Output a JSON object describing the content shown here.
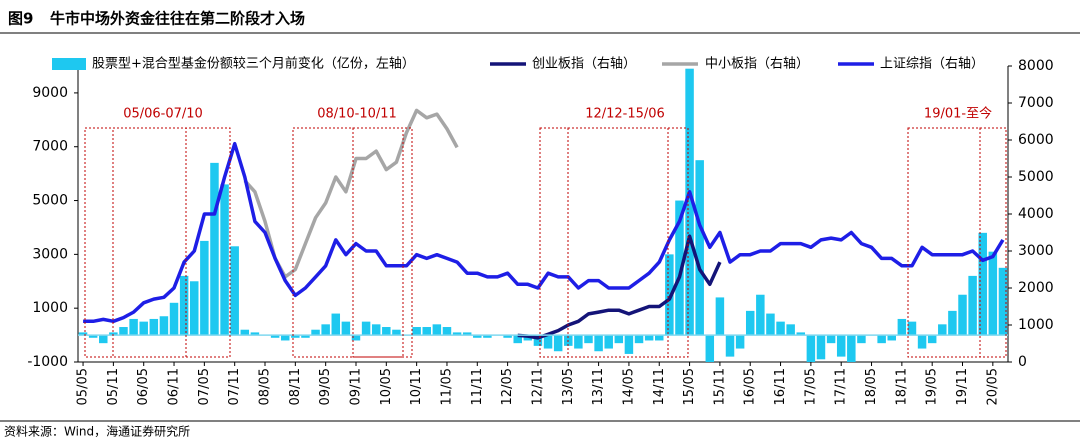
{
  "chart_data": {
    "type": "bar",
    "figure_label": "图9",
    "title": "牛市中场外资金往往在第二阶段才入场",
    "source": "资料来源：Wind，海通证券研究所",
    "categories": [
      "05/05",
      null,
      null,
      "05/11",
      null,
      null,
      "06/05",
      null,
      null,
      "06/11",
      null,
      null,
      "07/05",
      null,
      null,
      "07/11",
      null,
      null,
      "08/05",
      null,
      null,
      "08/11",
      null,
      null,
      "09/05",
      null,
      null,
      "09/11",
      null,
      null,
      "10/05",
      null,
      null,
      "10/11",
      null,
      null,
      "11/05",
      null,
      null,
      "11/11",
      null,
      null,
      "12/05",
      null,
      null,
      "12/11",
      null,
      null,
      "13/05",
      null,
      null,
      "13/11",
      null,
      null,
      "14/05",
      null,
      null,
      "14/11",
      null,
      null,
      "15/05",
      null,
      null,
      "15/11",
      null,
      null,
      "16/05",
      null,
      null,
      "16/11",
      null,
      null,
      "17/05",
      null,
      null,
      "17/11",
      null,
      null,
      "18/05",
      null,
      null,
      "18/11",
      null,
      null,
      "19/05",
      null,
      null,
      "19/11",
      null,
      null,
      "20/05",
      null
    ],
    "series": [
      {
        "name": "股票型+混合型基金份额较三个月前变化（亿份，左轴）",
        "type": "bar",
        "color": "#1ec8f0",
        "values": [
          100,
          -100,
          -300,
          100,
          300,
          600,
          500,
          600,
          700,
          1200,
          2200,
          2000,
          3500,
          6400,
          5600,
          3300,
          200,
          100,
          0,
          -100,
          -200,
          -100,
          -100,
          200,
          400,
          800,
          500,
          -200,
          500,
          400,
          300,
          200,
          0,
          300,
          300,
          400,
          300,
          100,
          100,
          -100,
          -100,
          0,
          -100,
          -300,
          -200,
          -400,
          -500,
          -600,
          -400,
          -500,
          -300,
          -600,
          -500,
          -300,
          -700,
          -300,
          -200,
          -200,
          3000,
          5000,
          9900,
          6500,
          -1000,
          1400,
          -800,
          -500,
          900,
          1500,
          800,
          500,
          400,
          100,
          -1000,
          -900,
          -300,
          -800,
          -1000,
          -300,
          0,
          -300,
          -200,
          600,
          500,
          -500,
          -300,
          400,
          900,
          1500,
          2200,
          3800,
          3100,
          2500
        ]
      },
      {
        "name": "创业板指（右轴）",
        "type": "line",
        "axis": "y2",
        "color": "#141478",
        "values": [
          null,
          null,
          null,
          null,
          null,
          null,
          null,
          null,
          null,
          null,
          null,
          null,
          null,
          null,
          null,
          null,
          null,
          null,
          null,
          null,
          null,
          null,
          null,
          null,
          null,
          null,
          null,
          null,
          null,
          null,
          null,
          null,
          null,
          null,
          null,
          null,
          null,
          null,
          null,
          null,
          null,
          null,
          null,
          720,
          700,
          650,
          750,
          850,
          1000,
          1100,
          1300,
          1350,
          1400,
          1400,
          1300,
          1400,
          1500,
          1500,
          1700,
          2300,
          3400,
          2500,
          2100,
          2700,
          null,
          null,
          null,
          null,
          null,
          null,
          null,
          null,
          null,
          null,
          null,
          null,
          null,
          null,
          null,
          null,
          null,
          null,
          null,
          null,
          null,
          null,
          null,
          null,
          null,
          null,
          null,
          null
        ]
      },
      {
        "name": "中小板指（右轴）",
        "type": "line",
        "axis": "y2",
        "color": "#a6a6a6",
        "values": [
          null,
          null,
          null,
          null,
          null,
          null,
          null,
          null,
          null,
          null,
          null,
          null,
          null,
          null,
          null,
          null,
          4900,
          4600,
          3800,
          2800,
          2300,
          2500,
          3200,
          3900,
          4300,
          5000,
          4600,
          5500,
          5500,
          5700,
          5200,
          5400,
          6200,
          6800,
          6600,
          6700,
          6300,
          5800,
          null,
          null,
          null,
          null,
          null,
          null,
          null,
          null,
          null,
          null,
          null,
          null,
          null,
          null,
          null,
          null,
          null,
          null,
          null,
          null,
          null,
          null,
          null,
          null,
          null,
          null,
          null,
          null,
          null,
          null,
          null,
          null,
          null,
          null,
          null,
          null,
          null,
          null,
          null,
          null,
          null,
          null,
          null,
          null,
          null,
          null,
          null,
          null,
          null,
          null,
          null,
          null,
          null,
          null
        ]
      },
      {
        "name": "上证综指（右轴）",
        "type": "line",
        "axis": "y2",
        "color": "#1e1ee6",
        "values": [
          1100,
          1100,
          1150,
          1100,
          1200,
          1350,
          1600,
          1700,
          1750,
          2000,
          2700,
          3000,
          4000,
          4000,
          5000,
          5900,
          5000,
          3800,
          3500,
          2800,
          2200,
          1800,
          2000,
          2300,
          2600,
          3300,
          2900,
          3200,
          3000,
          3000,
          2600,
          2600,
          2600,
          2900,
          2800,
          2900,
          2800,
          2700,
          2400,
          2400,
          2300,
          2300,
          2400,
          2100,
          2100,
          2000,
          2400,
          2300,
          2300,
          2000,
          2200,
          2200,
          2000,
          2000,
          2000,
          2200,
          2400,
          2700,
          3300,
          3800,
          4600,
          3700,
          3100,
          3500,
          2700,
          2900,
          2900,
          3000,
          3000,
          3200,
          3200,
          3200,
          3100,
          3300,
          3350,
          3300,
          3500,
          3200,
          3100,
          2800,
          2800,
          2600,
          2600,
          3100,
          2900,
          2900,
          2900,
          2900,
          3000,
          2750,
          2850,
          3300
        ]
      }
    ],
    "ylim": [
      -1000,
      10000
    ],
    "yticks": [
      -1000,
      1000,
      3000,
      5000,
      7000,
      9000
    ],
    "y2lim": [
      0,
      8000
    ],
    "y2ticks": [
      0,
      1000,
      2000,
      3000,
      4000,
      5000,
      6000,
      7000,
      8000
    ],
    "annotations": [
      "05/06-07/10",
      "08/10-10/11",
      "12/12-15/06",
      "19/01-至今"
    ]
  }
}
